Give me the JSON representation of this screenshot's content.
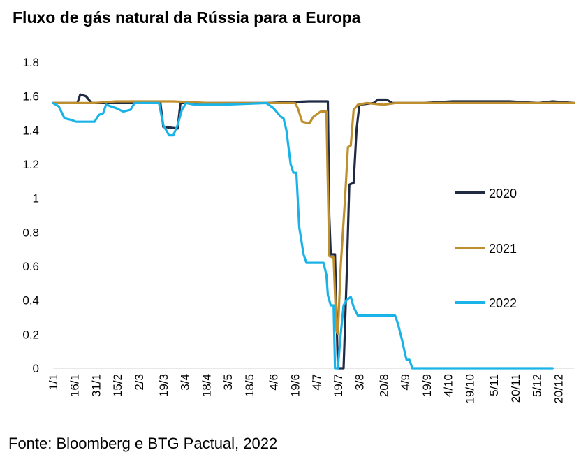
{
  "title": "Fluxo de gás natural da Rússia para a Europa",
  "source": "Fonte: Bloomberg e BTG Pactual, 2022",
  "chart_data": {
    "type": "line",
    "title": "Fluxo de gás natural da Rússia para a Europa",
    "xlabel": "",
    "ylabel": "",
    "x_axis": "day of year",
    "xlim": [
      1,
      365
    ],
    "ylim": [
      0,
      1.8
    ],
    "yticks": [
      0,
      0.2,
      0.4,
      0.6,
      0.8,
      1,
      1.2,
      1.4,
      1.6,
      1.8
    ],
    "ytick_labels": [
      "0",
      "0.2",
      "0.4",
      "0.6",
      "0.8",
      "1",
      "1.2",
      "1.4",
      "1.6",
      "1.8"
    ],
    "xticks": [
      {
        "label": "1/1",
        "day": 1
      },
      {
        "label": "16/1",
        "day": 16
      },
      {
        "label": "31/1",
        "day": 31
      },
      {
        "label": "15/2",
        "day": 46
      },
      {
        "label": "2/3",
        "day": 61
      },
      {
        "label": "19/3",
        "day": 78
      },
      {
        "label": "3/4",
        "day": 93
      },
      {
        "label": "18/4",
        "day": 108
      },
      {
        "label": "3/5",
        "day": 123
      },
      {
        "label": "18/5",
        "day": 138
      },
      {
        "label": "4/6",
        "day": 155
      },
      {
        "label": "19/6",
        "day": 170
      },
      {
        "label": "4/7",
        "day": 185
      },
      {
        "label": "19/7",
        "day": 200
      },
      {
        "label": "3/8",
        "day": 215
      },
      {
        "label": "20/8",
        "day": 232
      },
      {
        "label": "4/9",
        "day": 247
      },
      {
        "label": "19/9",
        "day": 262
      },
      {
        "label": "4/10",
        "day": 277
      },
      {
        "label": "19/10",
        "day": 292
      },
      {
        "label": "5/11",
        "day": 309
      },
      {
        "label": "20/11",
        "day": 324
      },
      {
        "label": "5/12",
        "day": 339
      },
      {
        "label": "20/12",
        "day": 354
      }
    ],
    "grid": false,
    "legend_position": "right",
    "series": [
      {
        "name": "2020",
        "color": "#1f2a44",
        "points": [
          [
            1,
            1.56
          ],
          [
            18,
            1.56
          ],
          [
            20,
            1.61
          ],
          [
            24,
            1.6
          ],
          [
            28,
            1.56
          ],
          [
            40,
            1.56
          ],
          [
            55,
            1.56
          ],
          [
            76,
            1.56
          ],
          [
            78,
            1.42
          ],
          [
            88,
            1.41
          ],
          [
            90,
            1.56
          ],
          [
            110,
            1.56
          ],
          [
            150,
            1.56
          ],
          [
            180,
            1.57
          ],
          [
            193,
            1.57
          ],
          [
            194,
            0.9
          ],
          [
            195,
            0.67
          ],
          [
            198,
            0.67
          ],
          [
            200,
            0
          ],
          [
            204,
            0
          ],
          [
            206,
            0.5
          ],
          [
            208,
            1.08
          ],
          [
            211,
            1.09
          ],
          [
            213,
            1.4
          ],
          [
            215,
            1.55
          ],
          [
            225,
            1.56
          ],
          [
            228,
            1.58
          ],
          [
            234,
            1.58
          ],
          [
            238,
            1.56
          ],
          [
            260,
            1.56
          ],
          [
            280,
            1.57
          ],
          [
            300,
            1.57
          ],
          [
            320,
            1.57
          ],
          [
            340,
            1.56
          ],
          [
            350,
            1.57
          ],
          [
            365,
            1.56
          ]
        ]
      },
      {
        "name": "2021",
        "color": "#bf8f2e",
        "points": [
          [
            1,
            1.56
          ],
          [
            20,
            1.56
          ],
          [
            30,
            1.56
          ],
          [
            45,
            1.57
          ],
          [
            60,
            1.57
          ],
          [
            85,
            1.57
          ],
          [
            110,
            1.56
          ],
          [
            130,
            1.56
          ],
          [
            155,
            1.56
          ],
          [
            170,
            1.56
          ],
          [
            172,
            1.53
          ],
          [
            175,
            1.45
          ],
          [
            180,
            1.44
          ],
          [
            183,
            1.48
          ],
          [
            188,
            1.51
          ],
          [
            192,
            1.51
          ],
          [
            194,
            0.66
          ],
          [
            197,
            0.65
          ],
          [
            199,
            0.22
          ],
          [
            200,
            0.2
          ],
          [
            202,
            0.6
          ],
          [
            205,
            1.0
          ],
          [
            207,
            1.3
          ],
          [
            209,
            1.31
          ],
          [
            211,
            1.52
          ],
          [
            214,
            1.55
          ],
          [
            220,
            1.56
          ],
          [
            232,
            1.55
          ],
          [
            240,
            1.56
          ],
          [
            260,
            1.56
          ],
          [
            300,
            1.56
          ],
          [
            330,
            1.56
          ],
          [
            365,
            1.56
          ]
        ]
      },
      {
        "name": "2022",
        "color": "#1ab3e8",
        "points": [
          [
            1,
            1.56
          ],
          [
            5,
            1.54
          ],
          [
            9,
            1.47
          ],
          [
            14,
            1.46
          ],
          [
            17,
            1.45
          ],
          [
            30,
            1.45
          ],
          [
            33,
            1.49
          ],
          [
            36,
            1.5
          ],
          [
            38,
            1.55
          ],
          [
            45,
            1.53
          ],
          [
            50,
            1.51
          ],
          [
            55,
            1.52
          ],
          [
            58,
            1.56
          ],
          [
            75,
            1.56
          ],
          [
            78,
            1.43
          ],
          [
            82,
            1.37
          ],
          [
            85,
            1.37
          ],
          [
            88,
            1.43
          ],
          [
            91,
            1.52
          ],
          [
            94,
            1.56
          ],
          [
            100,
            1.55
          ],
          [
            120,
            1.55
          ],
          [
            150,
            1.56
          ],
          [
            155,
            1.53
          ],
          [
            160,
            1.48
          ],
          [
            162,
            1.47
          ],
          [
            164,
            1.4
          ],
          [
            167,
            1.2
          ],
          [
            169,
            1.15
          ],
          [
            171,
            1.15
          ],
          [
            173,
            0.83
          ],
          [
            176,
            0.67
          ],
          [
            178,
            0.62
          ],
          [
            190,
            0.62
          ],
          [
            192,
            0.55
          ],
          [
            193,
            0.43
          ],
          [
            195,
            0.37
          ],
          [
            197,
            0.37
          ],
          [
            198,
            0.0
          ],
          [
            200,
            0.0
          ],
          [
            202,
            0.2
          ],
          [
            204,
            0.37
          ],
          [
            206,
            0.4
          ],
          [
            209,
            0.42
          ],
          [
            211,
            0.36
          ],
          [
            214,
            0.31
          ],
          [
            230,
            0.31
          ],
          [
            240,
            0.31
          ],
          [
            242,
            0.26
          ],
          [
            245,
            0.16
          ],
          [
            247,
            0.08
          ],
          [
            248,
            0.05
          ],
          [
            250,
            0.05
          ],
          [
            252,
            0
          ],
          [
            300,
            0
          ],
          [
            350,
            0
          ]
        ]
      }
    ]
  }
}
